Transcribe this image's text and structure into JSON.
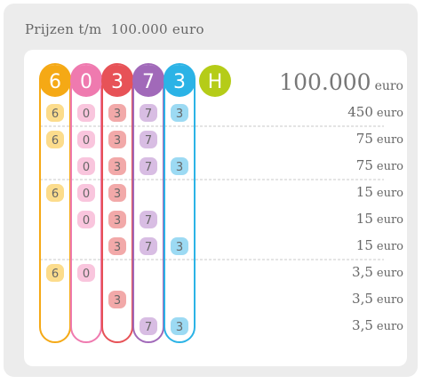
{
  "title": "Prijzen t/m  100.000 euro",
  "colors": {
    "c6": "#f5a915",
    "c0": "#ef7aaf",
    "c3": "#e75257",
    "c7": "#a169b9",
    "c3b": "#2bb3e6",
    "cH": "#b5cc18",
    "ball6": "#fcdc8c",
    "ball0": "#f9c5dd",
    "ball3": "#f2a9a9",
    "ball7": "#d8bde3",
    "ball3b": "#9cdaf3"
  },
  "header_digits": [
    "6",
    "0",
    "3",
    "7",
    "3",
    "H"
  ],
  "jackpot": {
    "amount": "100.000",
    "unit": "euro"
  },
  "rows": [
    {
      "balls": [
        true,
        true,
        true,
        true,
        true
      ],
      "amount": "450",
      "unit": "euro"
    },
    {
      "balls": [
        true,
        true,
        true,
        true,
        false
      ],
      "amount": "75",
      "unit": "euro"
    },
    {
      "balls": [
        false,
        true,
        true,
        true,
        true
      ],
      "amount": "75",
      "unit": "euro"
    },
    {
      "balls": [
        true,
        true,
        true,
        false,
        false
      ],
      "amount": "15",
      "unit": "euro"
    },
    {
      "balls": [
        false,
        true,
        true,
        true,
        false
      ],
      "amount": "15",
      "unit": "euro"
    },
    {
      "balls": [
        false,
        false,
        true,
        true,
        true
      ],
      "amount": "15",
      "unit": "euro"
    },
    {
      "balls": [
        true,
        true,
        false,
        false,
        false
      ],
      "amount": "3,5",
      "unit": "euro"
    },
    {
      "balls": [
        false,
        false,
        true,
        false,
        false
      ],
      "amount": "3,5",
      "unit": "euro"
    },
    {
      "balls": [
        false,
        false,
        false,
        true,
        true
      ],
      "amount": "3,5",
      "unit": "euro"
    }
  ]
}
